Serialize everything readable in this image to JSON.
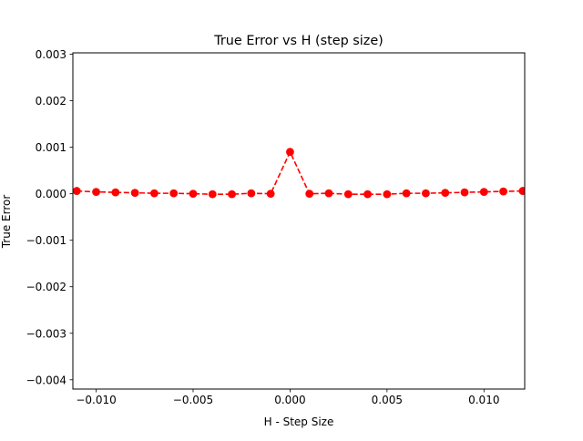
{
  "chart_data": {
    "type": "line",
    "title": "True Error vs H (step size)",
    "xlabel": "H - Step Size",
    "ylabel": "True Error",
    "xlim": [
      -0.0112,
      0.0121
    ],
    "ylim": [
      -0.0042,
      0.00303
    ],
    "xticks": [
      -0.01,
      -0.005,
      0.0,
      0.005,
      0.01
    ],
    "xtick_labels": [
      "−0.010",
      "−0.005",
      "0.000",
      "0.005",
      "0.010"
    ],
    "yticks": [
      -0.004,
      -0.003,
      -0.002,
      -0.001,
      0.0,
      0.001,
      0.002,
      0.003
    ],
    "ytick_labels": [
      "−0.004",
      "−0.003",
      "−0.002",
      "−0.001",
      "0.000",
      "0.001",
      "0.002",
      "0.003"
    ],
    "grid": false,
    "series": [
      {
        "color": "#ff0000",
        "line_style": "dashed",
        "marker": "circle",
        "x": [
          -0.011,
          -0.01,
          -0.009,
          -0.008,
          -0.007,
          -0.006,
          -0.005,
          -0.004,
          -0.003,
          -0.002,
          -0.001,
          0.0,
          0.001,
          0.002,
          0.003,
          0.004,
          0.005,
          0.006,
          0.007,
          0.008,
          0.009,
          0.01,
          0.011,
          0.012
        ],
        "y": [
          6e-05,
          4e-05,
          3e-05,
          2e-05,
          1e-05,
          1e-05,
          0.0,
          -1e-05,
          -1e-05,
          1e-05,
          0.0,
          0.0009,
          0.0,
          1e-05,
          -1e-05,
          -1e-05,
          -1e-05,
          1e-05,
          1e-05,
          2e-05,
          3e-05,
          4e-05,
          5e-05,
          6e-05
        ]
      }
    ]
  }
}
